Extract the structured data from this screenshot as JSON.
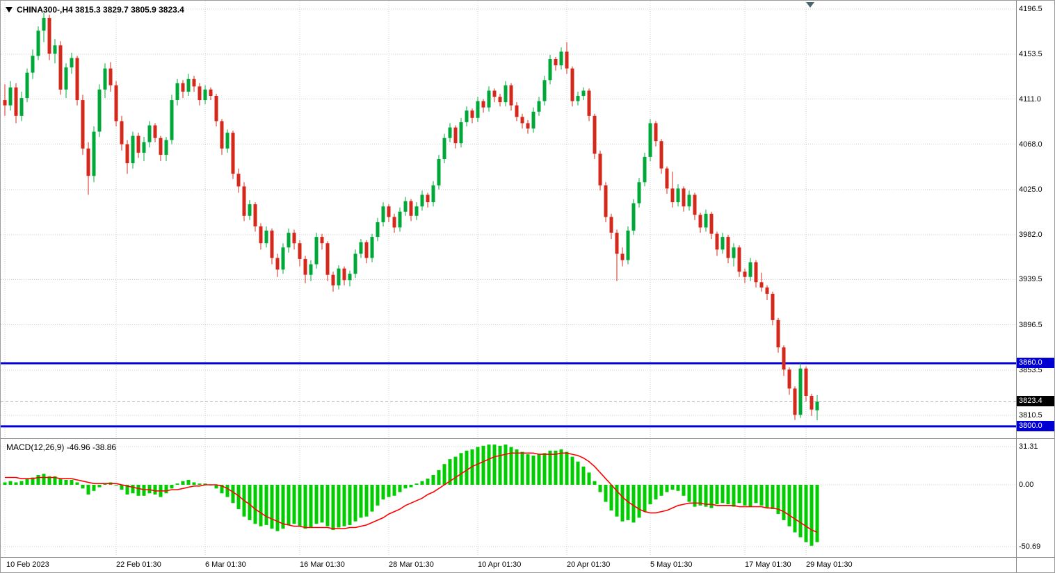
{
  "header": {
    "title": "CHINA300-,H4 3815.3 3829.7 3805.9 3823.4"
  },
  "macd_header": "MACD(12,26,9) -46.96 -38.86",
  "colors": {
    "up": "#00a83a",
    "down": "#d5281c",
    "macd_bar": "#00cc00",
    "signal": "#ff0000",
    "hline": "#0000d2",
    "grid": "#cfcfcf",
    "current_label_bg": "#000000",
    "hline_label_bg": "#0000d2",
    "label_text": "#ffffff"
  },
  "chart_data": {
    "type": "candlestick",
    "title": "CHINA300-,H4",
    "symbol": "CHINA300-",
    "timeframe": "H4",
    "open": 3815.3,
    "high": 3829.7,
    "low": 3805.9,
    "close": 3823.4,
    "y_axis_range": [
      3790,
      4204
    ],
    "grid": true,
    "y_ticks": [
      {
        "label": "4196.5",
        "price": 4196.5
      },
      {
        "label": "4153.5",
        "price": 4153.5
      },
      {
        "label": "4111.0",
        "price": 4111.0
      },
      {
        "label": "4068.0",
        "price": 4068.0
      },
      {
        "label": "4025.0",
        "price": 4025.0
      },
      {
        "label": "3982.0",
        "price": 3982.0
      },
      {
        "label": "3939.5",
        "price": 3939.5
      },
      {
        "label": "3896.5",
        "price": 3896.5
      },
      {
        "label": "3853.5",
        "price": 3853.5
      },
      {
        "label": "3810.5",
        "price": 3810.5
      }
    ],
    "hlines": [
      {
        "label": "3860.0",
        "price": 3860.0
      },
      {
        "label": "3800.0",
        "price": 3800.0
      }
    ],
    "current_price": {
      "label": "3823.4",
      "price": 3823.4
    },
    "x_ticks": [
      {
        "label": "10 Feb 2023",
        "i": 0
      },
      {
        "label": "22 Feb 01:30",
        "i": 20
      },
      {
        "label": "6 Mar 01:30",
        "i": 36
      },
      {
        "label": "16 Mar 01:30",
        "i": 53
      },
      {
        "label": "28 Mar 01:30",
        "i": 69
      },
      {
        "label": "10 Apr 01:30",
        "i": 85
      },
      {
        "label": "20 Apr 01:30",
        "i": 101
      },
      {
        "label": "5 May 01:30",
        "i": 116
      },
      {
        "label": "17 May 01:30",
        "i": 133
      },
      {
        "label": "29 May 01:30",
        "i": 144
      }
    ],
    "candles": [
      [
        4110,
        4125,
        4095,
        4105
      ],
      [
        4105,
        4128,
        4100,
        4122
      ],
      [
        4122,
        4126,
        4088,
        4095
      ],
      [
        4095,
        4118,
        4090,
        4112
      ],
      [
        4112,
        4140,
        4108,
        4136
      ],
      [
        4136,
        4158,
        4130,
        4152
      ],
      [
        4152,
        4180,
        4148,
        4176
      ],
      [
        4176,
        4193,
        4165,
        4188
      ],
      [
        4188,
        4191,
        4148,
        4154
      ],
      [
        4154,
        4168,
        4145,
        4162
      ],
      [
        4162,
        4166,
        4115,
        4120
      ],
      [
        4120,
        4145,
        4112,
        4141
      ],
      [
        4141,
        4155,
        4135,
        4150
      ],
      [
        4150,
        4152,
        4105,
        4110
      ],
      [
        4110,
        4115,
        4058,
        4064
      ],
      [
        4064,
        4070,
        4020,
        4038
      ],
      [
        4038,
        4085,
        4032,
        4080
      ],
      [
        4080,
        4125,
        4075,
        4120
      ],
      [
        4120,
        4145,
        4112,
        4140
      ],
      [
        4140,
        4146,
        4118,
        4124
      ],
      [
        4124,
        4128,
        4085,
        4090
      ],
      [
        4090,
        4095,
        4062,
        4068
      ],
      [
        4068,
        4072,
        4040,
        4050
      ],
      [
        4050,
        4080,
        4045,
        4076
      ],
      [
        4076,
        4079,
        4055,
        4060
      ],
      [
        4060,
        4075,
        4052,
        4070
      ],
      [
        4070,
        4090,
        4065,
        4086
      ],
      [
        4086,
        4088,
        4070,
        4074
      ],
      [
        4074,
        4076,
        4052,
        4058
      ],
      [
        4058,
        4075,
        4052,
        4072
      ],
      [
        4072,
        4115,
        4068,
        4110
      ],
      [
        4110,
        4130,
        4105,
        4126
      ],
      [
        4126,
        4129,
        4112,
        4118
      ],
      [
        4118,
        4135,
        4114,
        4130
      ],
      [
        4130,
        4133,
        4118,
        4123
      ],
      [
        4123,
        4126,
        4105,
        4110
      ],
      [
        4110,
        4124,
        4106,
        4120
      ],
      [
        4120,
        4122,
        4110,
        4114
      ],
      [
        4114,
        4116,
        4085,
        4090
      ],
      [
        4090,
        4092,
        4058,
        4064
      ],
      [
        4064,
        4082,
        4060,
        4079
      ],
      [
        4079,
        4081,
        4035,
        4040
      ],
      [
        4040,
        4045,
        4022,
        4028
      ],
      [
        4028,
        4032,
        3995,
        4000
      ],
      [
        4000,
        4015,
        3996,
        4011
      ],
      [
        4011,
        4013,
        3985,
        3990
      ],
      [
        3990,
        3993,
        3968,
        3974
      ],
      [
        3974,
        3990,
        3970,
        3986
      ],
      [
        3986,
        3988,
        3954,
        3960
      ],
      [
        3960,
        3964,
        3942,
        3949
      ],
      [
        3949,
        3974,
        3945,
        3970
      ],
      [
        3970,
        3988,
        3965,
        3984
      ],
      [
        3984,
        3987,
        3968,
        3974
      ],
      [
        3974,
        3977,
        3952,
        3959
      ],
      [
        3959,
        3962,
        3936,
        3944
      ],
      [
        3944,
        3958,
        3938,
        3954
      ],
      [
        3954,
        3984,
        3950,
        3980
      ],
      [
        3980,
        3983,
        3968,
        3974
      ],
      [
        3974,
        3976,
        3938,
        3944
      ],
      [
        3944,
        3947,
        3928,
        3934
      ],
      [
        3934,
        3953,
        3930,
        3950
      ],
      [
        3950,
        3952,
        3934,
        3939
      ],
      [
        3939,
        3948,
        3933,
        3945
      ],
      [
        3945,
        3968,
        3941,
        3964
      ],
      [
        3964,
        3978,
        3960,
        3975
      ],
      [
        3975,
        3977,
        3955,
        3960
      ],
      [
        3960,
        3983,
        3956,
        3980
      ],
      [
        3980,
        3998,
        3976,
        3994
      ],
      [
        3994,
        4013,
        3990,
        4009
      ],
      [
        4009,
        4011,
        3994,
        3999
      ],
      [
        3999,
        4002,
        3984,
        3989
      ],
      [
        3989,
        4008,
        3985,
        4004
      ],
      [
        4004,
        4018,
        4000,
        4014
      ],
      [
        4014,
        4016,
        3995,
        4000
      ],
      [
        4000,
        4013,
        3996,
        4009
      ],
      [
        4009,
        4024,
        4005,
        4020
      ],
      [
        4020,
        4022,
        4008,
        4013
      ],
      [
        4013,
        4033,
        4009,
        4029
      ],
      [
        4029,
        4058,
        4025,
        4054
      ],
      [
        4054,
        4078,
        4050,
        4074
      ],
      [
        4074,
        4088,
        4070,
        4084
      ],
      [
        4084,
        4086,
        4064,
        4069
      ],
      [
        4069,
        4093,
        4065,
        4089
      ],
      [
        4089,
        4104,
        4085,
        4100
      ],
      [
        4100,
        4102,
        4088,
        4093
      ],
      [
        4093,
        4113,
        4089,
        4109
      ],
      [
        4109,
        4111,
        4098,
        4103
      ],
      [
        4103,
        4123,
        4099,
        4119
      ],
      [
        4119,
        4121,
        4108,
        4113
      ],
      [
        4113,
        4116,
        4104,
        4108
      ],
      [
        4108,
        4128,
        4104,
        4124
      ],
      [
        4124,
        4126,
        4100,
        4105
      ],
      [
        4105,
        4108,
        4090,
        4094
      ],
      [
        4094,
        4097,
        4083,
        4088
      ],
      [
        4088,
        4091,
        4078,
        4083
      ],
      [
        4083,
        4103,
        4079,
        4099
      ],
      [
        4099,
        4113,
        4095,
        4109
      ],
      [
        4109,
        4133,
        4105,
        4129
      ],
      [
        4129,
        4153,
        4125,
        4149
      ],
      [
        4149,
        4151,
        4138,
        4143
      ],
      [
        4143,
        4160,
        4139,
        4156
      ],
      [
        4156,
        4165,
        4135,
        4140
      ],
      [
        4140,
        4142,
        4104,
        4109
      ],
      [
        4109,
        4118,
        4105,
        4114
      ],
      [
        4114,
        4122,
        4110,
        4119
      ],
      [
        4119,
        4121,
        4090,
        4095
      ],
      [
        4095,
        4097,
        4054,
        4059
      ],
      [
        4059,
        4062,
        4024,
        4029
      ],
      [
        4029,
        4032,
        3994,
        3999
      ],
      [
        3999,
        4002,
        3978,
        3984
      ],
      [
        3984,
        3987,
        3938,
        3964
      ],
      [
        3964,
        3970,
        3952,
        3958
      ],
      [
        3958,
        3990,
        3954,
        3986
      ],
      [
        3986,
        4016,
        3982,
        4012
      ],
      [
        4012,
        4036,
        4008,
        4032
      ],
      [
        4032,
        4060,
        4028,
        4056
      ],
      [
        4056,
        4092,
        4052,
        4088
      ],
      [
        4088,
        4090,
        4066,
        4071
      ],
      [
        4071,
        4073,
        4040,
        4045
      ],
      [
        4045,
        4047,
        4021,
        4026
      ],
      [
        4026,
        4042,
        4008,
        4013
      ],
      [
        4013,
        4030,
        4009,
        4026
      ],
      [
        4026,
        4028,
        4004,
        4009
      ],
      [
        4009,
        4024,
        4005,
        4020
      ],
      [
        4020,
        4022,
        3996,
        4001
      ],
      [
        4001,
        4003,
        3984,
        3989
      ],
      [
        3989,
        4006,
        3985,
        4002
      ],
      [
        4002,
        4004,
        3978,
        3983
      ],
      [
        3983,
        3985,
        3962,
        3968
      ],
      [
        3968,
        3984,
        3964,
        3980
      ],
      [
        3980,
        3982,
        3955,
        3960
      ],
      [
        3960,
        3974,
        3952,
        3970
      ],
      [
        3970,
        3972,
        3942,
        3947
      ],
      [
        3947,
        3950,
        3936,
        3942
      ],
      [
        3942,
        3960,
        3938,
        3956
      ],
      [
        3956,
        3958,
        3932,
        3937
      ],
      [
        3937,
        3946,
        3928,
        3932
      ],
      [
        3932,
        3934,
        3920,
        3926
      ],
      [
        3926,
        3928,
        3896,
        3901
      ],
      [
        3901,
        3903,
        3870,
        3875
      ],
      [
        3875,
        3877,
        3848,
        3854
      ],
      [
        3854,
        3856,
        3830,
        3836
      ],
      [
        3836,
        3838,
        3806,
        3811
      ],
      [
        3811,
        3860,
        3808,
        3855
      ],
      [
        3855,
        3857,
        3824,
        3829
      ],
      [
        3829,
        3831,
        3810,
        3816
      ],
      [
        3815.3,
        3829.7,
        3805.9,
        3823.4
      ]
    ],
    "macd": {
      "params": "MACD(12,26,9)",
      "value": "-46.96",
      "signal_value": "-38.86",
      "y_ticks": [
        {
          "label": "31.31",
          "v": 31.31
        },
        {
          "label": "0.00",
          "v": 0
        },
        {
          "label": "-50.69",
          "v": -50.69
        }
      ],
      "hist": [
        2,
        3,
        2,
        3,
        5,
        6,
        8,
        9,
        7,
        7,
        5,
        4,
        4,
        2,
        -3,
        -8,
        -5,
        -2,
        1,
        2,
        0,
        -4,
        -8,
        -7,
        -9,
        -9,
        -7,
        -8,
        -10,
        -7,
        -3,
        1,
        3,
        4,
        2,
        1,
        1,
        0,
        -3,
        -7,
        -10,
        -15,
        -20,
        -26,
        -29,
        -32,
        -34,
        -33,
        -36,
        -38,
        -36,
        -33,
        -32,
        -34,
        -36,
        -35,
        -32,
        -31,
        -34,
        -37,
        -35,
        -34,
        -33,
        -30,
        -27,
        -26,
        -22,
        -17,
        -12,
        -10,
        -9,
        -6,
        -3,
        -2,
        1,
        3,
        5,
        8,
        12,
        17,
        21,
        23,
        26,
        28,
        29,
        31,
        32,
        33,
        33,
        32,
        33,
        31,
        29,
        27,
        25,
        24,
        25,
        26,
        28,
        28,
        29,
        27,
        23,
        19,
        15,
        10,
        3,
        -6,
        -14,
        -21,
        -26,
        -30,
        -29,
        -31,
        -27,
        -22,
        -16,
        -12,
        -9,
        -6,
        -4,
        -5,
        -9,
        -14,
        -18,
        -17,
        -18,
        -19,
        -16,
        -15,
        -16,
        -18,
        -15,
        -17,
        -18,
        -15,
        -17,
        -19,
        -20,
        -24,
        -29,
        -34,
        -39,
        -43,
        -47,
        -50,
        -46.96
      ],
      "signal": [
        6,
        6,
        6,
        5,
        5,
        5,
        6,
        6,
        6,
        6,
        5,
        5,
        5,
        4,
        3,
        2,
        1,
        1,
        1,
        1,
        1,
        0,
        -1,
        -2,
        -3,
        -4,
        -4,
        -5,
        -5,
        -5,
        -4,
        -4,
        -3,
        -2,
        -1,
        -1,
        0,
        0,
        0,
        -1,
        -3,
        -6,
        -9,
        -13,
        -16,
        -20,
        -23,
        -26,
        -28,
        -30,
        -32,
        -33,
        -34,
        -34,
        -35,
        -35,
        -35,
        -35,
        -35,
        -36,
        -36,
        -36,
        -35,
        -35,
        -34,
        -33,
        -31,
        -29,
        -27,
        -24,
        -22,
        -20,
        -17,
        -15,
        -13,
        -11,
        -8,
        -6,
        -3,
        0,
        3,
        6,
        9,
        12,
        15,
        17,
        19,
        21,
        23,
        24,
        25,
        26,
        26,
        26,
        26,
        26,
        25,
        25,
        25,
        25,
        26,
        26,
        25,
        24,
        22,
        19,
        15,
        10,
        5,
        0,
        -5,
        -10,
        -14,
        -17,
        -20,
        -22,
        -23,
        -23,
        -22,
        -21,
        -19,
        -17,
        -16,
        -15,
        -15,
        -15,
        -16,
        -16,
        -17,
        -17,
        -17,
        -17,
        -18,
        -18,
        -18,
        -18,
        -18,
        -19,
        -19,
        -20,
        -22,
        -25,
        -28,
        -31,
        -34,
        -37,
        -38.86
      ]
    }
  }
}
